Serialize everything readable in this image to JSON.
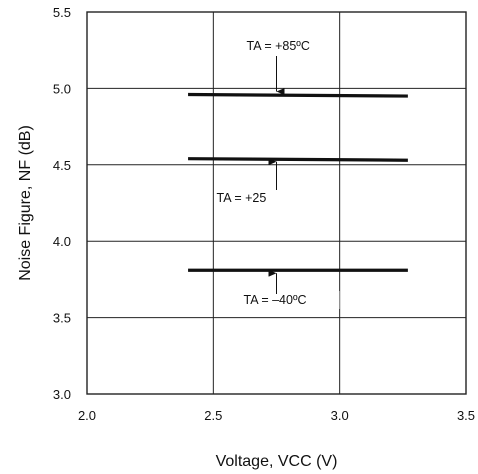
{
  "chart_data": {
    "type": "line",
    "xlabel": "Voltage, VCC (V)",
    "ylabel": "Noise Figure, NF (dB)",
    "xlim": [
      2.0,
      3.5
    ],
    "ylim": [
      3.0,
      5.5
    ],
    "xticks": [
      "2.0",
      "2.5",
      "3.0",
      "3.5"
    ],
    "yticks": [
      "3.0",
      "3.5",
      "4.0",
      "4.5",
      "5.0",
      "5.5"
    ],
    "grid": true,
    "series": [
      {
        "name": "TA = +85ºC",
        "x": [
          2.4,
          3.27
        ],
        "y": [
          4.96,
          4.95
        ]
      },
      {
        "name": "TA = +25",
        "x": [
          2.4,
          3.27
        ],
        "y": [
          4.54,
          4.53
        ]
      },
      {
        "name": "TA = –40ºC",
        "x": [
          2.4,
          3.27
        ],
        "y": [
          3.81,
          3.81
        ]
      }
    ],
    "annotations": [
      {
        "text": "TA = +85ºC",
        "series": 0
      },
      {
        "text": "TA = +25",
        "series": 1
      },
      {
        "text": "TA = –40ºC",
        "series": 2
      }
    ]
  }
}
